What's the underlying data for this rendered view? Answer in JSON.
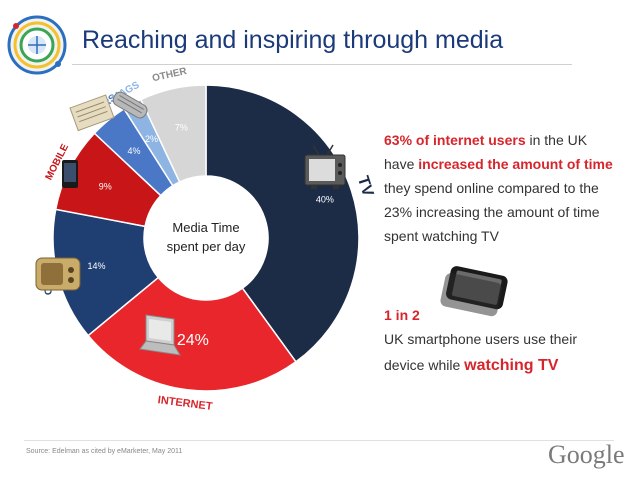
{
  "header": {
    "title": "Reaching and inspiring through media"
  },
  "chart_data": {
    "type": "pie",
    "center_label": [
      "Media Time",
      "spent per day"
    ],
    "categories": [
      "TV",
      "INTERNET",
      "RADIO",
      "MOBILE",
      "PAPERS",
      "MAGS",
      "OTHER"
    ],
    "values": [
      40,
      24,
      14,
      9,
      4,
      2,
      7
    ],
    "value_labels": [
      "40%",
      "24%",
      "14%",
      "9%",
      "4%",
      "2%",
      "7%"
    ],
    "colors": [
      "#1c2c47",
      "#e8262b",
      "#1f3f73",
      "#c81517",
      "#4a78c6",
      "#8eb4e3",
      "#d6d6d6"
    ]
  },
  "stats": {
    "stat1": {
      "line1_bold": "63% of internet users",
      "line1_rest": " in the UK",
      "line2_pre": "have ",
      "line2_bold": "increased the amount of time",
      "line3": "they spend online compared to the",
      "line4": "23% increasing the amount of time",
      "line5": "spent watching TV"
    },
    "stat2": {
      "headline": "1 in 2",
      "line1": "UK smartphone users use their",
      "line2_pre": "device while ",
      "line2_bold": "watching TV"
    }
  },
  "footer": {
    "source": "Source: Edelman as cited by eMarketer, May 2011",
    "brand": "Google"
  },
  "icons": [
    "tv-icon",
    "laptop-icon",
    "radio-icon",
    "mobile-phone-icon",
    "newspaper-icon",
    "magazine-icon",
    "smartphone-icon",
    "globe-logo-icon"
  ]
}
